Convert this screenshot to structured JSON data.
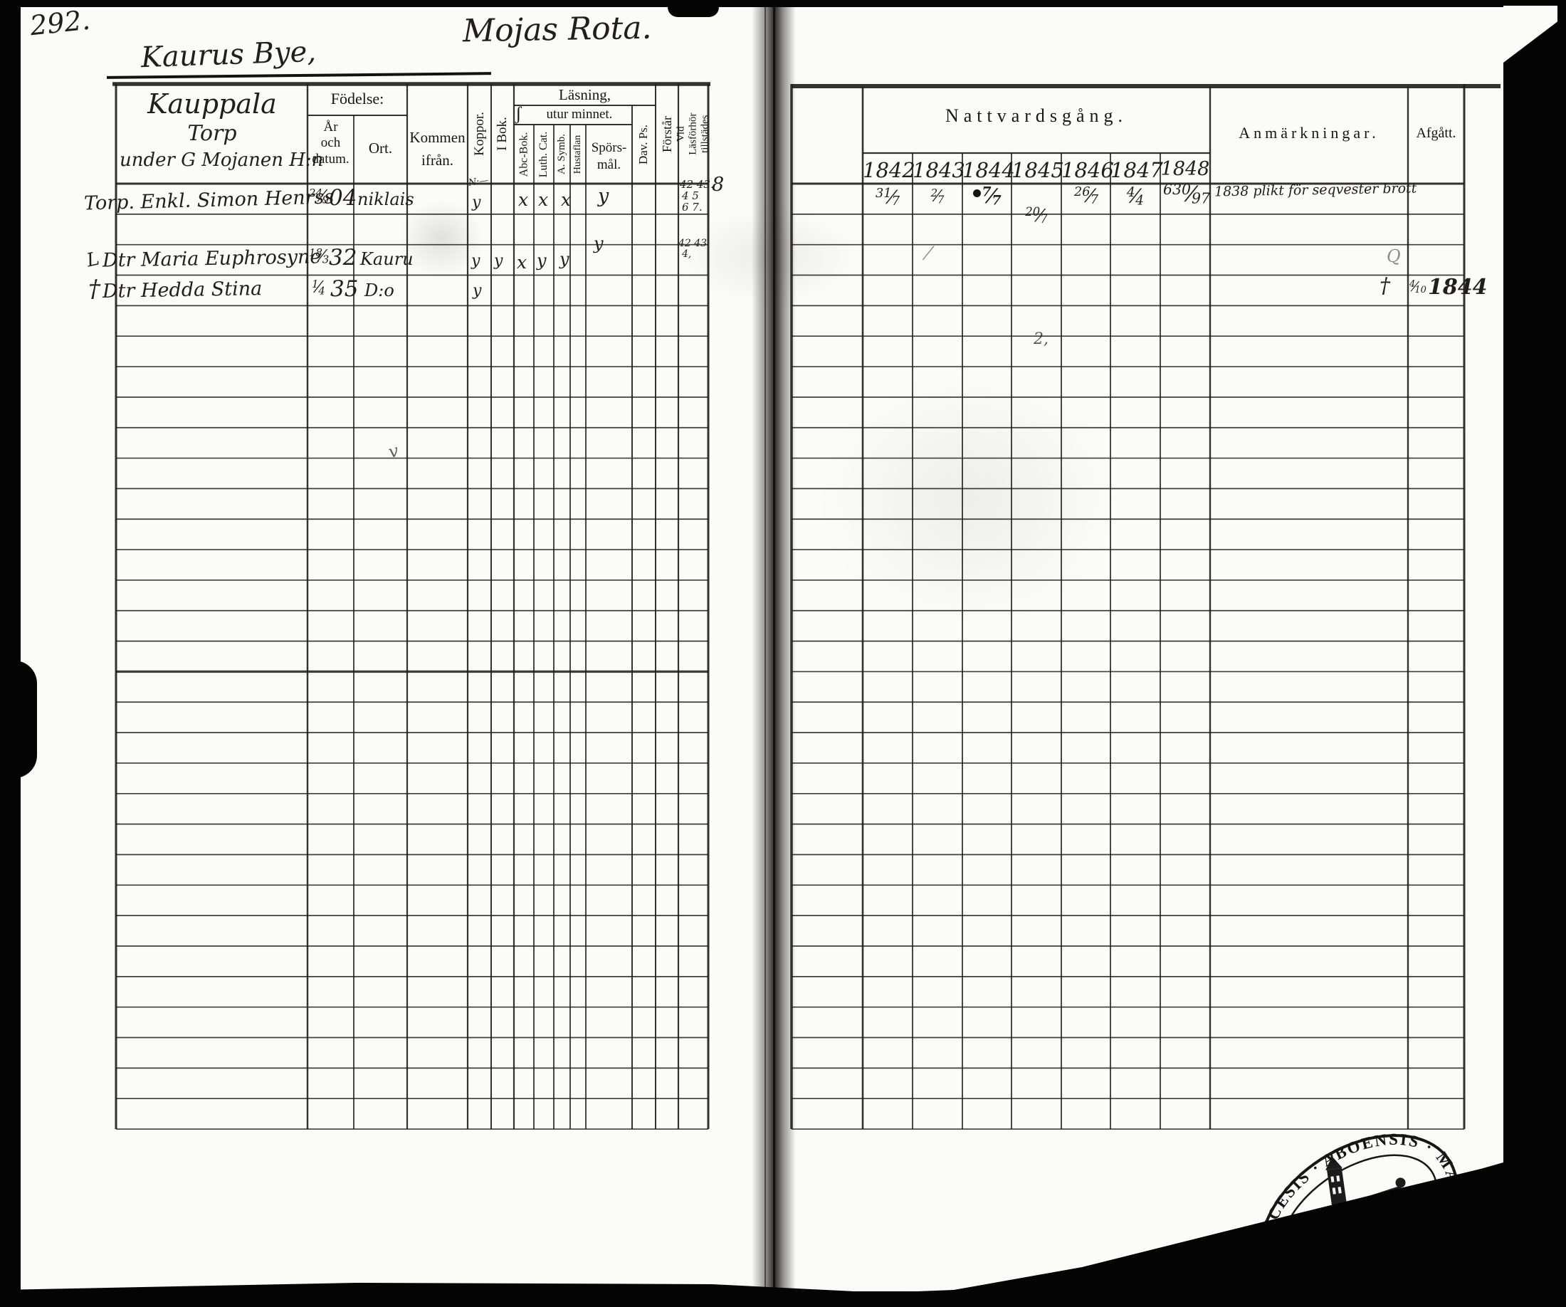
{
  "scan": {
    "page_number": "292.",
    "village_heading": "Kaurus Bye,",
    "rote_heading": "Mojas Rota."
  },
  "household": {
    "line1": "Kauppala",
    "line2": "Torp",
    "line3": "under G Mojanen H:n"
  },
  "left_table": {
    "fodelse": "Födelse:",
    "ar_och_datum": "År\noch\ndatum.",
    "ort": "Ort.",
    "kommen_ifran": "Kommen\nifrån.",
    "koppor": "Koppor.",
    "i_bok": "I Bok.",
    "lasning": "Läsning,",
    "brace": "ʃ",
    "utur_minnet": "utur minnet.",
    "abc_bok": "Abc-Bok.",
    "luth_cat": "Luth. Cat.",
    "a_symb": "A. Symb.",
    "hustaflan": "Hustaflan",
    "sporsmal": "Spörs-\nmål.",
    "dav_ps": "Dav. Ps.",
    "forstar": "Förstår",
    "vid_lasforhor": "Vid Läsförhör\ntillstädes"
  },
  "right_table": {
    "nattvardsgang": "Nattvardsgång.",
    "years": [
      "1842",
      "1843",
      "1844",
      "1845",
      "1846",
      "1847",
      "1848"
    ],
    "anmarkningar": "Anmärkningar.",
    "afgatt": "Afgått."
  },
  "records": [
    {
      "name": "Torp. Enkl. Simon Henrss",
      "birth_date": "24/9",
      "birth_year": "04",
      "ort": "niklais",
      "koppor_note": "N:—",
      "koppor": "y",
      "abc_bok": "x",
      "luth_cat": "x",
      "a_symb": "x",
      "sporsmal": "y",
      "vid_line1": "42 43.",
      "vid_line2": "4 5",
      "vid_line3": "6 7.",
      "vid_outside": "8",
      "natt_1842": "31/7",
      "natt_1843": "2/7",
      "natt_1844": "7/7",
      "natt_1845": "20/7",
      "natt_1846": "26/7",
      "natt_1847": "4/4",
      "natt_1848": "630/97",
      "anmarkning": "1838 plikt för seqvester brott"
    },
    {
      "margin_mark": "L",
      "name": "Dtr Maria Euphrosyne",
      "birth_date": "18/3",
      "birth_year": "32",
      "ort": "Kauru",
      "koppor": "y",
      "i_bok": "y",
      "abc_bok": "x",
      "luth_cat": "y",
      "a_symb": "y",
      "sporsmal": "y",
      "vid_line1": "42 43",
      "vid_line2": "4,"
    },
    {
      "margin_mark": "†",
      "name": "Dtr Hedda Stina",
      "birth_date": "1/4",
      "birth_year": "35",
      "ort": "D:o",
      "koppor": "y",
      "afgatt_mark": "†",
      "afgatt_date": "4/10",
      "afgatt_year": "1844"
    }
  ],
  "stray_marks": {
    "check": "v",
    "squiggle": "2,",
    "q": "Q",
    "slash": "⁄"
  },
  "stamp": {
    "text": "DIOECESIS · ABOENSIS ·  MAGNI · PRINC : FINL ·"
  }
}
